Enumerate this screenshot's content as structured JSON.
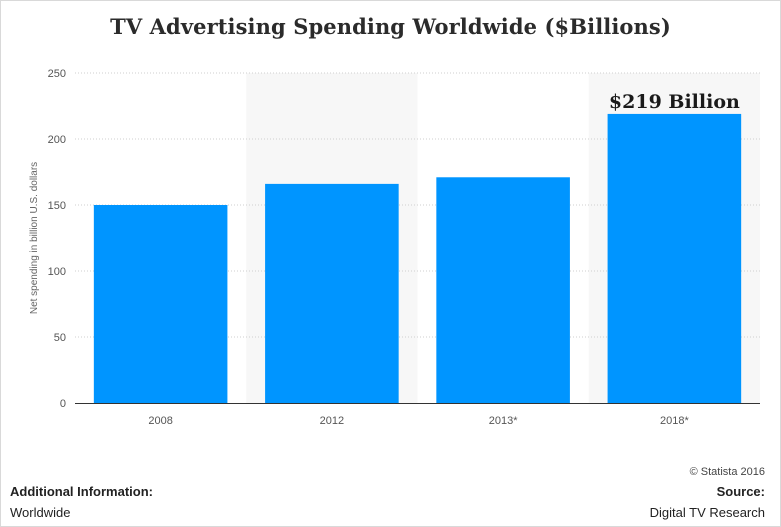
{
  "chart_data": {
    "type": "bar",
    "title": "TV Advertising Spending Worldwide ($Billions)",
    "xlabel": "",
    "ylabel": "Net spending in billion U.S. dollars",
    "categories": [
      "2008",
      "2012",
      "2013*",
      "2018*"
    ],
    "values": [
      150,
      166,
      171,
      219
    ],
    "ylim": [
      0,
      250
    ],
    "yticks": [
      0,
      50,
      100,
      150,
      200,
      250
    ],
    "grid": true,
    "bar_color": "#0095ff",
    "annotation": {
      "category": "2018*",
      "text": "$219 Billion"
    }
  },
  "footer": {
    "copyright": "© Statista 2016",
    "additional_info_label": "Additional Information:",
    "additional_info_value": "Worldwide",
    "source_label": "Source:",
    "source_value": "Digital TV Research"
  }
}
